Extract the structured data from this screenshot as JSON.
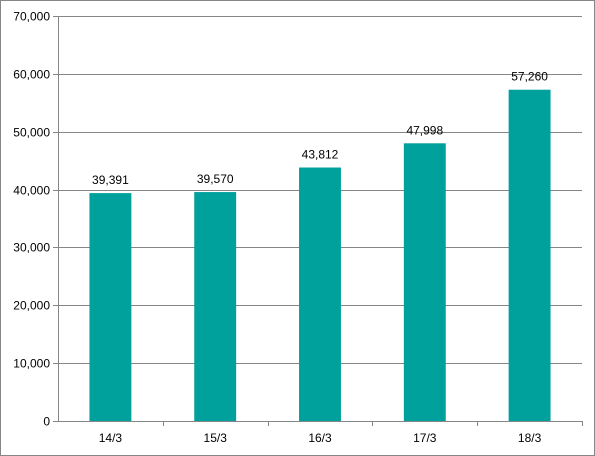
{
  "chart_data": {
    "type": "bar",
    "title": "",
    "xlabel": "",
    "ylabel": "",
    "categories": [
      "14/3",
      "15/3",
      "16/3",
      "17/3",
      "18/3"
    ],
    "values": [
      39391,
      39570,
      43812,
      47998,
      57260
    ],
    "data_labels": [
      "39,391",
      "39,570",
      "43,812",
      "47,998",
      "57,260"
    ],
    "ylim": [
      0,
      70000
    ],
    "y_ticks": [
      0,
      10000,
      20000,
      30000,
      40000,
      50000,
      60000,
      70000
    ],
    "y_tick_labels": [
      "0",
      "10,000",
      "20,000",
      "30,000",
      "40,000",
      "50,000",
      "60,000",
      "70,000"
    ],
    "grid": true,
    "legend": "none",
    "bar_color": "#00A09D",
    "gridline_color": "#868686"
  }
}
